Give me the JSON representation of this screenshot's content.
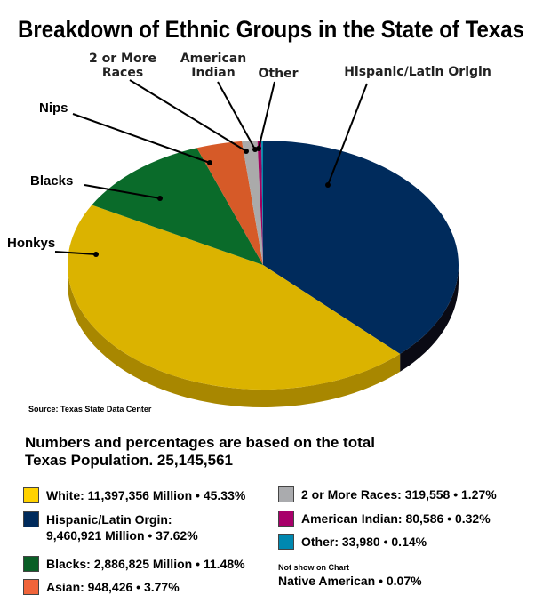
{
  "chart_data": {
    "type": "pie",
    "title": "Breakdown of Ethnic Groups in the State of Texas",
    "source": "Source: Texas State Data Center",
    "slices": [
      {
        "key": "hispanic",
        "label": "Hispanic/Latin Origin",
        "value": 37.62,
        "color": "#002b5c",
        "side": "#0a0a14"
      },
      {
        "key": "white",
        "label": "Honkys",
        "value": 45.33,
        "color": "#dbb300",
        "side": "#a88700"
      },
      {
        "key": "black",
        "label": "Blacks",
        "value": 11.48,
        "color": "#0a6b2a",
        "side": "#064a1c"
      },
      {
        "key": "asian",
        "label": "Nips",
        "value": 3.77,
        "color": "#d65a28",
        "side": "#9a3e1a"
      },
      {
        "key": "multi",
        "label": "2 or More Races",
        "value": 1.27,
        "color": "#aaaaaa",
        "side": "#777777"
      },
      {
        "key": "amind",
        "label": "American Indian",
        "value": 0.32,
        "color": "#a0005e",
        "side": "#6a003e"
      },
      {
        "key": "other",
        "label": "Other",
        "value": 0.14,
        "color": "#0088aa",
        "side": "#005a72"
      }
    ]
  },
  "labels": {
    "multi": [
      "2 or More",
      "Races"
    ],
    "amind": [
      "American",
      "Indian"
    ],
    "other": "Other",
    "hispanic": "Hispanic/Latin Origin",
    "asian": "Nips",
    "black": "Blacks",
    "white": "Honkys"
  },
  "heading": [
    "Numbers and percentages are based on the total",
    "Texas Population. 25,145,561"
  ],
  "legend": [
    {
      "text": "White: 11,397,356 Million • 45.33%",
      "color": "#ffd200"
    },
    {
      "text": "Hispanic/Latin Orgin:",
      "text2": "9,460,921 Million • 37.62%",
      "color": "#002b5c"
    },
    {
      "text": "Blacks: 2,886,825 Million • 11.48%",
      "color": "#0a5e26"
    },
    {
      "text": "Asian: 948,426 • 3.77%",
      "color": "#f0643a"
    },
    {
      "text": "2 or More Races: 319,558 • 1.27%",
      "color": "#aaabae"
    },
    {
      "text": "American Indian: 80,586 • 0.32%",
      "color": "#a8006a"
    },
    {
      "text": "Other: 33,980 • 0.14%",
      "color": "#0088b0"
    }
  ],
  "not_shown": {
    "note": "Not show on Chart",
    "text": "Native American • 0.07%"
  }
}
